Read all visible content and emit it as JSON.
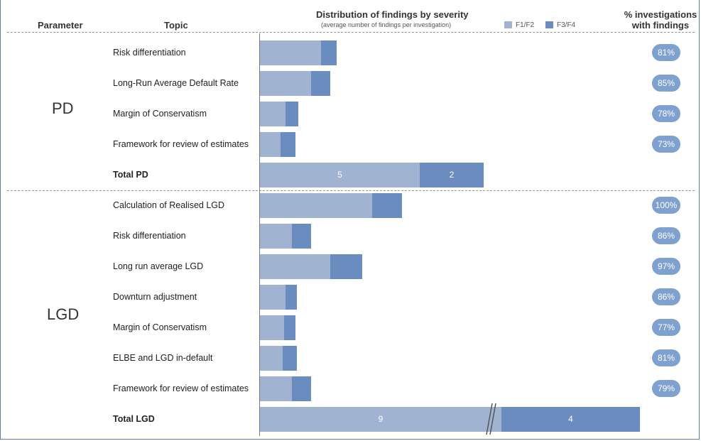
{
  "header": {
    "parameter": "Parameter",
    "topic": "Topic",
    "distribution_title": "Distribution of findings by severity",
    "distribution_sub": "(average number of findings per investigation)",
    "pct_line1": "% investigations",
    "pct_line2": "with findings"
  },
  "legend": [
    {
      "label": "F1/F2",
      "color": "#a0b3d1"
    },
    {
      "label": "F3/F4",
      "color": "#6b8cbf"
    }
  ],
  "groups": [
    {
      "label": "PD"
    },
    {
      "label": "LGD"
    }
  ],
  "chart_data": {
    "type": "bar",
    "orientation": "horizontal",
    "stacked": true,
    "series": [
      {
        "name": "F1/F2",
        "color": "#a0b3d1"
      },
      {
        "name": "F3/F4",
        "color": "#6b8cbf"
      }
    ],
    "rows": [
      {
        "group": "PD",
        "topic": "Risk differentiation",
        "f12": 1.9,
        "f34": 0.5,
        "pct": "81%",
        "total": false
      },
      {
        "group": "PD",
        "topic": "Long-Run Average Default Rate",
        "f12": 1.6,
        "f34": 0.6,
        "pct": "85%",
        "total": false
      },
      {
        "group": "PD",
        "topic": "Margin of Conservatism",
        "f12": 0.8,
        "f34": 0.4,
        "pct": "78%",
        "total": false
      },
      {
        "group": "PD",
        "topic": "Framework for review of estimates",
        "f12": 0.65,
        "f34": 0.45,
        "pct": "73%",
        "total": false
      },
      {
        "group": "PD",
        "topic": "Total PD",
        "f12": 5,
        "f34": 2,
        "pct": "",
        "total": true,
        "f12_label": "5",
        "f34_label": "2"
      },
      {
        "group": "LGD",
        "topic": "Calculation of Realised LGD",
        "f12": 3.5,
        "f34": 0.95,
        "pct": "100%",
        "total": false
      },
      {
        "group": "LGD",
        "topic": "Risk differentiation",
        "f12": 1.0,
        "f34": 0.6,
        "pct": "86%",
        "total": false
      },
      {
        "group": "LGD",
        "topic": "Long run average LGD",
        "f12": 2.2,
        "f34": 1.0,
        "pct": "97%",
        "total": false
      },
      {
        "group": "LGD",
        "topic": "Downturn adjustment",
        "f12": 0.8,
        "f34": 0.35,
        "pct": "86%",
        "total": false
      },
      {
        "group": "LGD",
        "topic": "Margin of Conservatism",
        "f12": 0.75,
        "f34": 0.35,
        "pct": "77%",
        "total": false
      },
      {
        "group": "LGD",
        "topic": "ELBE and LGD in-default",
        "f12": 0.7,
        "f34": 0.45,
        "pct": "81%",
        "total": false
      },
      {
        "group": "LGD",
        "topic": "Framework for review of estimates",
        "f12": 1.0,
        "f34": 0.6,
        "pct": "79%",
        "total": false
      },
      {
        "group": "LGD",
        "topic": "Total LGD",
        "f12": 9,
        "f34": 4,
        "pct": "",
        "total": true,
        "f12_label": "9",
        "f34_label": "4",
        "axis_break": true
      }
    ]
  }
}
